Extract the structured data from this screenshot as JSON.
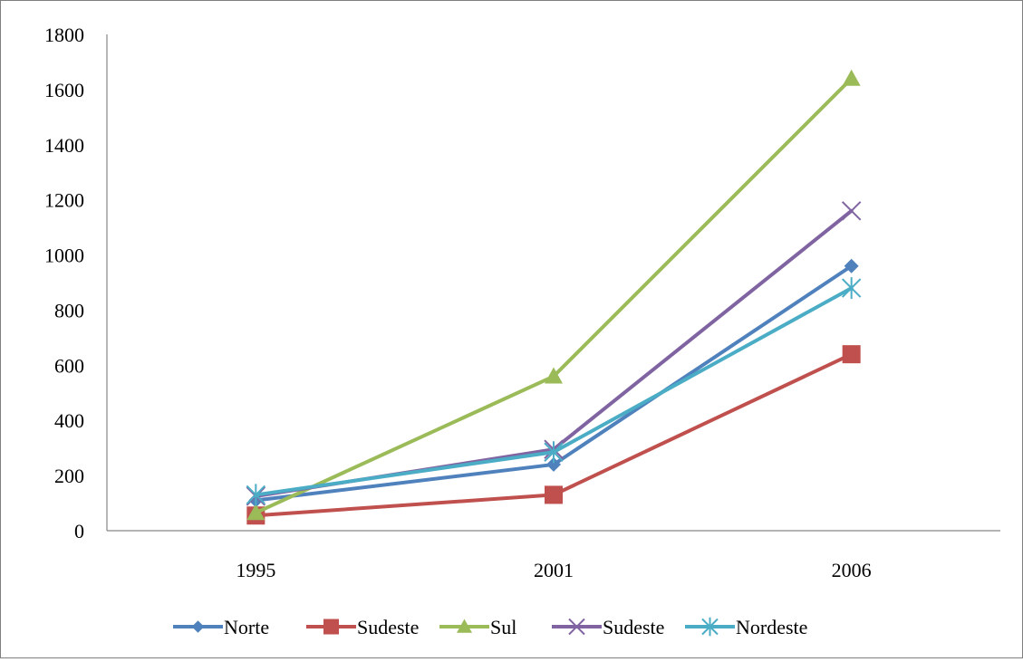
{
  "chart_data": {
    "type": "line",
    "categories": [
      "1995",
      "2001",
      "2006"
    ],
    "ylim": [
      0,
      1800
    ],
    "yticks": [
      "0",
      "200",
      "400",
      "600",
      "800",
      "1000",
      "1200",
      "1400",
      "1600",
      "1800"
    ],
    "grid": false,
    "legend_position": "bottom",
    "series": [
      {
        "name": "Norte",
        "values": [
          110,
          240,
          960
        ],
        "color": "#4f81bd",
        "marker": "diamond"
      },
      {
        "name": "Sudeste",
        "values": [
          55,
          130,
          640
        ],
        "color": "#c0504d",
        "marker": "square"
      },
      {
        "name": "Sul",
        "values": [
          65,
          560,
          1640
        ],
        "color": "#9bbb59",
        "marker": "triangle"
      },
      {
        "name": "Sudeste",
        "values": [
          125,
          295,
          1160
        ],
        "color": "#8064a2",
        "marker": "x"
      },
      {
        "name": "Nordeste",
        "values": [
          130,
          285,
          880
        ],
        "color": "#4bacc6",
        "marker": "star"
      }
    ]
  }
}
